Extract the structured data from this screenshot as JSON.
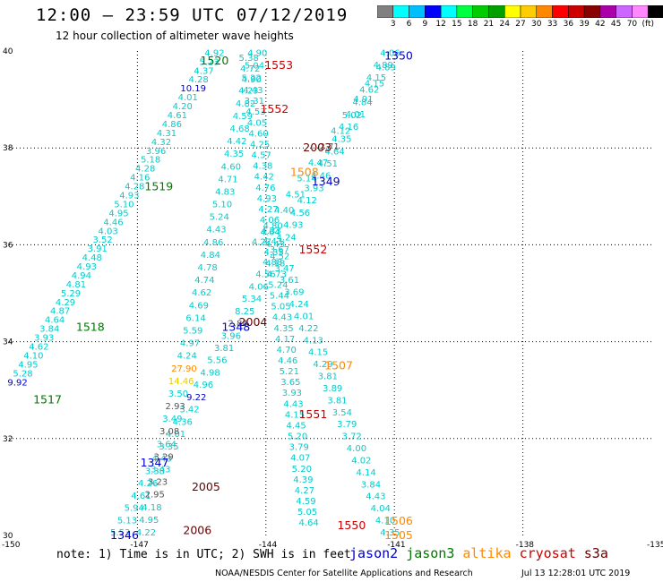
{
  "chart_data": {
    "type": "scatter",
    "title": "12:00 — 23:59 UTC 07/12/2019",
    "subtitle": "12 hour collection of altimeter wave heights",
    "xlim": [
      -150,
      -135
    ],
    "ylim": [
      30,
      40
    ],
    "x_ticks": [
      "-150",
      "-147",
      "-144",
      "-141",
      "-138",
      "-135"
    ],
    "y_ticks": [
      "30",
      "32",
      "34",
      "36",
      "38",
      "40"
    ],
    "grid": "dotted",
    "colorbar": {
      "colors": [
        "#808080",
        "#00ffff",
        "#00bfff",
        "#0000ff",
        "#00ffff",
        "#00ff40",
        "#00cc00",
        "#00a000",
        "#ffff00",
        "#ffcc00",
        "#ff8800",
        "#ff0000",
        "#cc0000",
        "#880000",
        "#aa00aa",
        "#cc66ff",
        "#ff88ff",
        "#000000"
      ],
      "labels": [
        "3",
        "6",
        "9",
        "12",
        "15",
        "18",
        "21",
        "24",
        "27",
        "30",
        "33",
        "36",
        "39",
        "42",
        "45",
        "70",
        "(ft)"
      ]
    },
    "satellites": [
      {
        "name": "jason2",
        "color": "#0000cc"
      },
      {
        "name": "jason3",
        "color": "#007700"
      },
      {
        "name": "altika",
        "color": "#ff8800"
      },
      {
        "name": "cryosat",
        "color": "#cc0000"
      },
      {
        "name": "s3a",
        "color": "#660000"
      }
    ],
    "pass_times": [
      {
        "t": "1350",
        "sat": "jason2",
        "x": -140.9,
        "y": 39.9
      },
      {
        "t": "1520",
        "sat": "jason3",
        "x": -145.2,
        "y": 39.8
      },
      {
        "t": "1553",
        "sat": "cryosat",
        "x": -143.7,
        "y": 39.7
      },
      {
        "t": "1552",
        "sat": "cryosat",
        "x": -143.8,
        "y": 38.8
      },
      {
        "t": "2003",
        "sat": "s3a",
        "x": -142.8,
        "y": 38.0
      },
      {
        "t": "1508",
        "sat": "altika",
        "x": -143.1,
        "y": 37.5
      },
      {
        "t": "1349",
        "sat": "jason2",
        "x": -142.6,
        "y": 37.3
      },
      {
        "t": "1519",
        "sat": "jason3",
        "x": -146.5,
        "y": 37.2
      },
      {
        "t": "1552",
        "sat": "cryosat",
        "x": -142.9,
        "y": 35.9
      },
      {
        "t": "2004",
        "sat": "s3a",
        "x": -144.3,
        "y": 34.4
      },
      {
        "t": "1348",
        "sat": "jason2",
        "x": -144.7,
        "y": 34.3
      },
      {
        "t": "1518",
        "sat": "jason3",
        "x": -148.1,
        "y": 34.3
      },
      {
        "t": "1507",
        "sat": "altika",
        "x": -142.3,
        "y": 33.5
      },
      {
        "t": "1517",
        "sat": "jason3",
        "x": -149.1,
        "y": 32.8
      },
      {
        "t": "1551",
        "sat": "cryosat",
        "x": -142.9,
        "y": 32.5
      },
      {
        "t": "1347",
        "sat": "jason2",
        "x": -146.6,
        "y": 31.5
      },
      {
        "t": "2005",
        "sat": "s3a",
        "x": -145.4,
        "y": 31.0
      },
      {
        "t": "1346",
        "sat": "jason2",
        "x": -147.3,
        "y": 30.0
      },
      {
        "t": "2006",
        "sat": "s3a",
        "x": -145.6,
        "y": 30.1
      },
      {
        "t": "1550",
        "sat": "cryosat",
        "x": -142.0,
        "y": 30.2
      },
      {
        "t": "1506",
        "sat": "altika",
        "x": -140.9,
        "y": 30.3
      },
      {
        "t": "1505",
        "sat": "altika",
        "x": -140.9,
        "y": 30.0
      }
    ],
    "tracks": [
      {
        "sat": "jason3",
        "start": [
          -149.8,
          33.1
        ],
        "end": [
          -145.2,
          39.9
        ],
        "values": [
          "9.92",
          "5.28",
          "4.95",
          "4.10",
          "4.62",
          "3.93",
          "3.84",
          "4.64",
          "4.87",
          "4.29",
          "5.29",
          "4.81",
          "4.94",
          "4.93",
          "4.48",
          "3.91",
          "3.52",
          "4.03",
          "4.46",
          "4.95",
          "5.10",
          "4.93",
          "4.28",
          "4.16",
          "4.28",
          "5.18",
          "3.96",
          "4.32",
          "4.31",
          "4.86",
          "4.61",
          "4.20",
          "4.01",
          "10.19",
          "4.28",
          "4.37",
          "5.23",
          "4.92"
        ]
      },
      {
        "sat": "jason2",
        "start": [
          -147.4,
          30.0
        ],
        "end": [
          -141.1,
          39.9
        ],
        "values": [
          "5.53",
          "5.13",
          "5.94",
          "4.61",
          "4.26",
          "3.38",
          "4.43",
          "3.35",
          "4.01",
          "4.36",
          "3.42",
          "9.22",
          "4.96",
          "4.98",
          "5.56",
          "3.81",
          "3.96",
          "2.84",
          "8.25",
          "5.34",
          "4.06",
          "4.56",
          "4.88",
          "3.67",
          "4.24",
          "4.93",
          "4.56",
          "4.12",
          "3.93",
          "4.46",
          "4.51",
          "4.64",
          "4.35",
          "4.16",
          "4.01",
          "4.84",
          "4.62",
          "4.15",
          "4.89",
          "4.06"
        ]
      },
      {
        "sat": "jason3",
        "start": [
          -146.8,
          30.0
        ],
        "end": [
          -144.2,
          39.9
        ],
        "values": [
          "4.22",
          "4.95",
          "4.18",
          "2.95",
          "3.23",
          "3.43",
          "3.29",
          "3.64",
          "3.08",
          "3.49",
          "2.93",
          "3.50",
          "14.46",
          "27.90",
          "4.24",
          "4.97",
          "5.59",
          "6.14",
          "4.69",
          "4.62",
          "4.74",
          "4.78",
          "4.84",
          "4.86",
          "4.43",
          "5.24",
          "5.10",
          "4.83",
          "4.71",
          "4.60",
          "4.35",
          "4.42",
          "4.68",
          "4.59",
          "4.82",
          "4.23",
          "5.22",
          "5.04",
          "4.90"
        ]
      },
      {
        "sat": "cryosat",
        "start": [
          -143.0,
          30.2
        ],
        "end": [
          -144.4,
          39.8
        ],
        "values": [
          "4.64",
          "5.05",
          "4.59",
          "4.27",
          "4.39",
          "5.20",
          "4.07",
          "3.79",
          "5.20",
          "4.45",
          "4.15",
          "4.43",
          "3.93",
          "3.65",
          "5.21",
          "4.46",
          "4.70",
          "4.17",
          "4.35",
          "4.43",
          "5.05",
          "5.44",
          "5.24",
          "4.73",
          "4.18",
          "4.35",
          "4.43",
          "4.33",
          "4.06",
          "4.27",
          "4.93",
          "4.76",
          "4.42",
          "4.38",
          "4.57",
          "4.25",
          "4.60",
          "4.05",
          "4.53",
          "3.31",
          "4.43",
          "4.90",
          "4.72",
          "5.38"
        ]
      },
      {
        "sat": "cryosat",
        "start": [
          -141.1,
          30.0
        ],
        "end": [
          -143.9,
          36.2
        ],
        "values": [
          "4.35",
          "4.10",
          "4.04",
          "4.43",
          "3.84",
          "4.14",
          "4.02",
          "4.00",
          "3.72",
          "3.79",
          "3.54",
          "3.81",
          "3.89",
          "3.81",
          "4.29",
          "4.15",
          "4.13",
          "4.22",
          "4.01",
          "4.24",
          "3.69",
          "3.61",
          "3.47",
          "4.52",
          "4.43",
          "4.64"
        ]
      },
      {
        "sat": "s3a",
        "start": [
          -144.1,
          36.0
        ],
        "end": [
          -141.2,
          39.6
        ],
        "values": [
          "4.27",
          "4.80",
          "4.40",
          "4.51",
          "5.14",
          "4.47",
          "2.71",
          "4.12",
          "5.02",
          "4.91",
          "4.15",
          "4.89"
        ]
      }
    ],
    "note": "note: 1) Time is in UTC; 2) SWH is in feet",
    "credit": "NOAA/NESDIS Center for Satellite Applications and Research",
    "timestamp": "Jul 13 12:28:01 UTC 2019"
  }
}
